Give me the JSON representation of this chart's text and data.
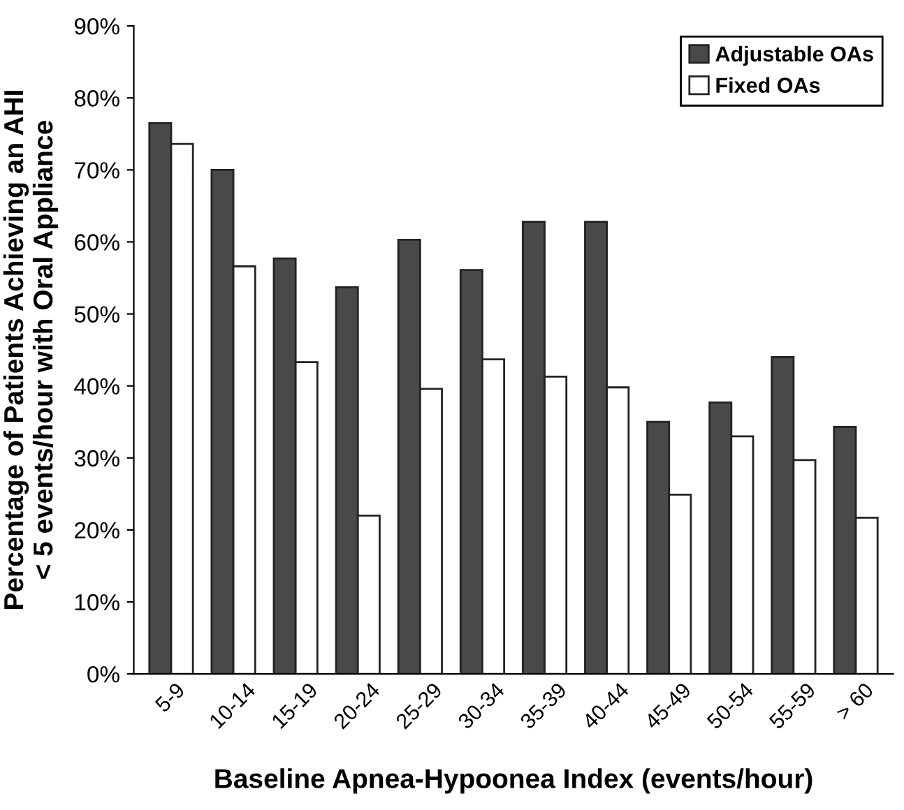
{
  "chart_data": {
    "type": "bar",
    "xlabel": "Baseline Apnea-Hypoonea Index (events/hour)",
    "ylabel": "Percentage of Patients Achieving an AHI\n< 5 events/hour with Oral Appliance",
    "categories": [
      "5-9",
      "10-14",
      "15-19",
      "20-24",
      "25-29",
      "30-34",
      "35-39",
      "40-44",
      "45-49",
      "50-54",
      "55-59",
      "> 60"
    ],
    "series": [
      {
        "name": "Adjustable OAs",
        "color": "#47494b",
        "values": [
          76.5,
          70,
          57.7,
          53.7,
          60.3,
          56.1,
          62.8,
          62.8,
          35.0,
          37.7,
          44.0,
          34.3
        ]
      },
      {
        "name": "Fixed OAs",
        "color": "#ffffff",
        "values": [
          73.6,
          56.6,
          43.3,
          22.0,
          39.6,
          43.7,
          41.3,
          39.8,
          24.9,
          33.0,
          29.7,
          21.7
        ]
      }
    ],
    "ylim": [
      0,
      90
    ],
    "yticks": [
      {
        "value": 0,
        "label": "0%"
      },
      {
        "value": 10,
        "label": "10%"
      },
      {
        "value": 20,
        "label": "20%"
      },
      {
        "value": 30,
        "label": "30%"
      },
      {
        "value": 40,
        "label": "40%"
      },
      {
        "value": 50,
        "label": "50%"
      },
      {
        "value": 60,
        "label": "60%"
      },
      {
        "value": 70,
        "label": "70%"
      },
      {
        "value": 80,
        "label": "80%"
      },
      {
        "value": 90,
        "label": "90%"
      }
    ],
    "grid": false,
    "legend": "top right"
  }
}
